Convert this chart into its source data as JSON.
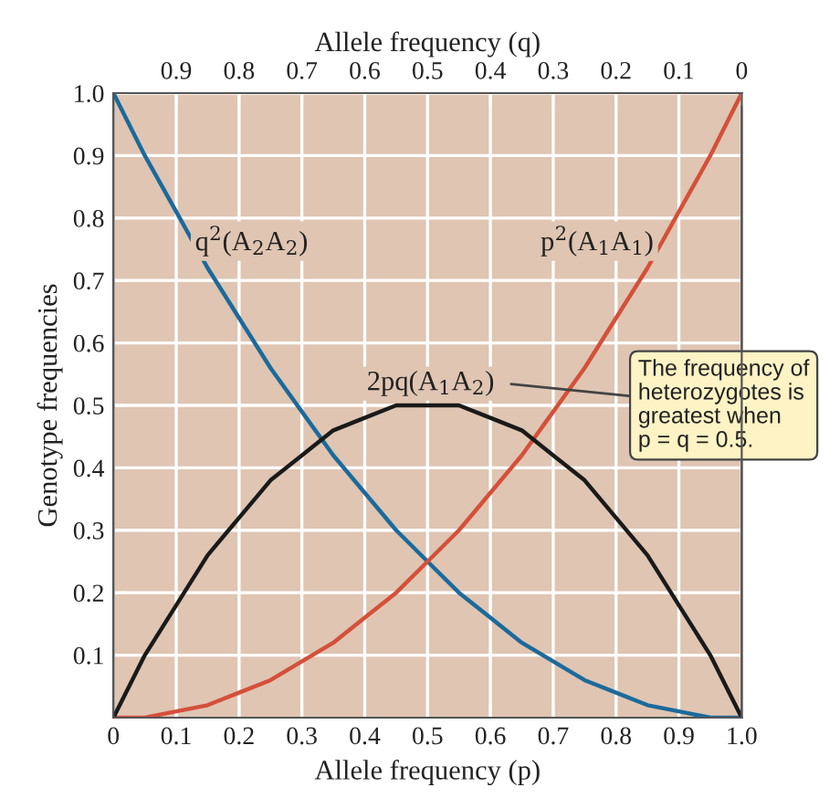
{
  "chart_data": {
    "type": "line",
    "xlabel": "Allele frequency (p)",
    "x2label": "Allele frequency (q)",
    "ylabel": "Genotype frequencies",
    "x": [
      0,
      0.05,
      0.1,
      0.15,
      0.2,
      0.25,
      0.3,
      0.35,
      0.4,
      0.45,
      0.5,
      0.55,
      0.6,
      0.65,
      0.7,
      0.75,
      0.8,
      0.85,
      0.9,
      0.95,
      1.0
    ],
    "series": [
      {
        "name": "q$^{2}$(A$_{2}$A$_{2}$)",
        "color": "#1b6a9c",
        "values": [
          1.0,
          0.9,
          0.81,
          0.72,
          0.64,
          0.56,
          0.49,
          0.42,
          0.36,
          0.3,
          0.25,
          0.2,
          0.16,
          0.12,
          0.09,
          0.06,
          0.04,
          0.02,
          0.01,
          0,
          0
        ]
      },
      {
        "name": "p$^{2}$(A$_{1}$A$_{1}$)",
        "color": "#d4503a",
        "values": [
          0,
          0,
          0.01,
          0.02,
          0.04,
          0.06,
          0.09,
          0.12,
          0.16,
          0.2,
          0.25,
          0.3,
          0.36,
          0.42,
          0.49,
          0.56,
          0.64,
          0.72,
          0.81,
          0.9,
          1.0
        ]
      },
      {
        "name": "2pq(A$_{1}$A$_{2}$)",
        "color": "#1a1a1a",
        "values": [
          0,
          0.1,
          0.18,
          0.26,
          0.32,
          0.38,
          0.42,
          0.46,
          0.48,
          0.5,
          0.5,
          0.5,
          0.48,
          0.46,
          0.42,
          0.38,
          0.32,
          0.26,
          0.18,
          0.1,
          0
        ]
      }
    ],
    "xlim": [
      0,
      1
    ],
    "xticks": [
      0,
      0.1,
      0.2,
      0.3,
      0.4,
      0.5,
      0.6,
      0.7,
      0.8,
      0.9,
      {
        "value": 1,
        "label": "1.0"
      }
    ],
    "x2lim": [
      1,
      0
    ],
    "x2ticks": [
      0.9,
      0.8,
      0.7,
      0.6,
      0.5,
      0.4,
      0.3,
      0.2,
      0.1,
      0
    ],
    "ylim": [
      0,
      1
    ],
    "yticks": [
      0.1,
      0.2,
      0.3,
      0.4,
      0.5,
      0.6,
      0.7,
      0.8,
      0.9,
      {
        "value": 1,
        "label": "1.0"
      }
    ],
    "grid": true,
    "legend": false,
    "marker": "none",
    "line_style": "solid",
    "annotations": [
      "The frequency of\nheterozygotes is\ngreatest when\np = q = 0.5."
    ]
  }
}
